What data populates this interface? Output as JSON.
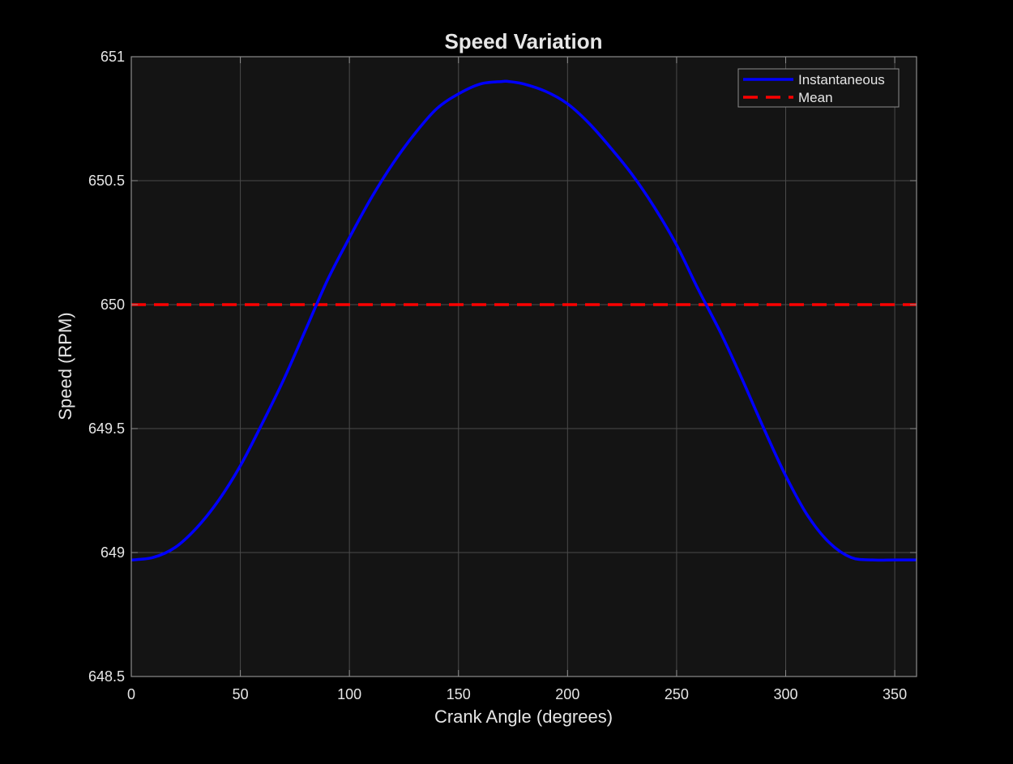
{
  "chart_data": {
    "type": "line",
    "title": "Speed Variation",
    "xlabel": "Crank Angle (degrees)",
    "ylabel": "Speed (RPM)",
    "xlim": [
      0,
      360
    ],
    "ylim": [
      648.5,
      651
    ],
    "xticks": [
      0,
      50,
      100,
      150,
      200,
      250,
      300,
      350
    ],
    "xtick_labels": [
      "0",
      "50",
      "100",
      "150",
      "200",
      "250",
      "300",
      "350"
    ],
    "yticks": [
      648.5,
      649,
      649.5,
      650,
      650.5,
      651
    ],
    "ytick_labels": [
      "648.5",
      "649",
      "649.5",
      "650",
      "650.5",
      "651"
    ],
    "grid": true,
    "legend_position": "top-right",
    "background_color": "#141414",
    "series": [
      {
        "name": "Instantaneous",
        "color": "#0000ff",
        "style": "solid",
        "x": [
          0,
          10,
          20,
          30,
          40,
          50,
          60,
          70,
          80,
          90,
          100,
          110,
          120,
          130,
          140,
          150,
          160,
          170,
          173,
          180,
          190,
          200,
          210,
          220,
          230,
          240,
          250,
          260,
          270,
          280,
          290,
          300,
          310,
          320,
          330,
          340,
          350,
          360
        ],
        "y": [
          648.97,
          648.98,
          649.02,
          649.1,
          649.21,
          649.35,
          649.52,
          649.7,
          649.9,
          650.1,
          650.27,
          650.43,
          650.57,
          650.69,
          650.79,
          650.85,
          650.89,
          650.9,
          650.9,
          650.89,
          650.86,
          650.81,
          650.73,
          650.63,
          650.52,
          650.39,
          650.24,
          650.06,
          649.89,
          649.7,
          649.5,
          649.31,
          649.15,
          649.04,
          648.98,
          648.97,
          648.97,
          648.97
        ]
      },
      {
        "name": "Mean",
        "color": "#ff0000",
        "style": "dashed",
        "x": [
          0,
          360
        ],
        "y": [
          650,
          650
        ]
      }
    ]
  }
}
